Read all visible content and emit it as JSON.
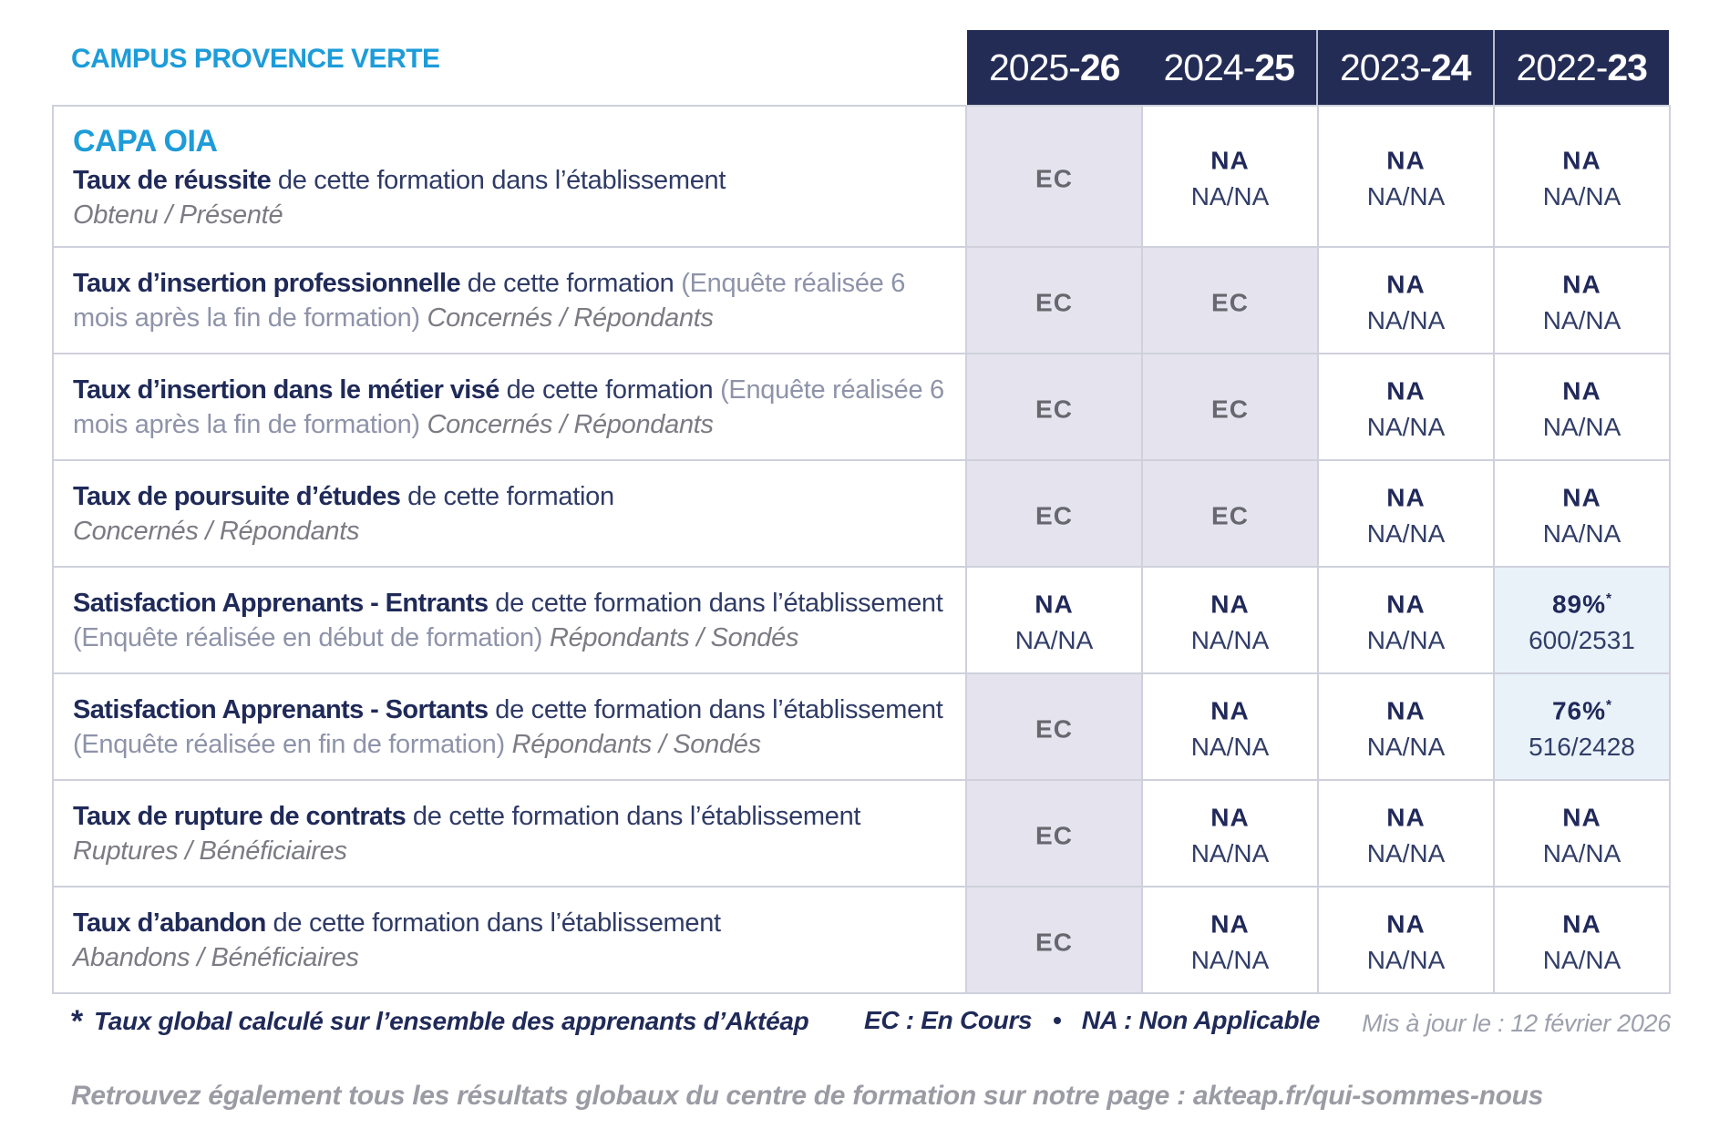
{
  "colors": {
    "accent_blue": "#1d9cd9",
    "header_navy": "#232c55",
    "title_navy": "#1f2a58",
    "body_navy": "#2f3b66",
    "paren_gray": "#8e93a9",
    "label_gray": "#7b7b84",
    "ec_gray": "#67676e",
    "cell_lavender": "#e5e4ee",
    "cell_lightblue": "#e9f2f9",
    "border": "#cfd0dc"
  },
  "campus_title": "CAMPUS PROVENCE VERTE",
  "program_title": "CAPA OIA",
  "year_columns": [
    {
      "prefix": "2025-",
      "suffix": "26"
    },
    {
      "prefix": "2024-",
      "suffix": "25"
    },
    {
      "prefix": "2023-",
      "suffix": "24"
    },
    {
      "prefix": "2022-",
      "suffix": "23"
    }
  ],
  "rows": [
    {
      "title": "Taux de réussite",
      "desc": " de cette formation dans l’établissement",
      "sublabel": "Obtenu / Présenté",
      "cells": [
        {
          "value": "EC"
        },
        {
          "value": "NA",
          "ratio": "NA/NA"
        },
        {
          "value": "NA",
          "ratio": "NA/NA"
        },
        {
          "value": "NA",
          "ratio": "NA/NA"
        }
      ]
    },
    {
      "title": "Taux d’insertion professionnelle",
      "desc": " de cette formation ",
      "paren": "(Enquête réalisée 6 mois après la fin de formation) ",
      "sublabel": "Concernés / Répondants",
      "cells": [
        {
          "value": "EC"
        },
        {
          "value": "EC"
        },
        {
          "value": "NA",
          "ratio": "NA/NA"
        },
        {
          "value": "NA",
          "ratio": "NA/NA"
        }
      ]
    },
    {
      "title": "Taux d’insertion dans le métier visé",
      "desc": " de cette formation ",
      "paren": "(Enquête réalisée 6 mois après la fin de formation) ",
      "sublabel": "Concernés / Répondants",
      "cells": [
        {
          "value": "EC"
        },
        {
          "value": "EC"
        },
        {
          "value": "NA",
          "ratio": "NA/NA"
        },
        {
          "value": "NA",
          "ratio": "NA/NA"
        }
      ]
    },
    {
      "title": "Taux de poursuite d’études",
      "desc": " de cette formation",
      "sublabel": "Concernés / Répondants",
      "cells": [
        {
          "value": "EC"
        },
        {
          "value": "EC"
        },
        {
          "value": "NA",
          "ratio": "NA/NA"
        },
        {
          "value": "NA",
          "ratio": "NA/NA"
        }
      ]
    },
    {
      "title": "Satisfaction Apprenants - Entrants",
      "desc": " de cette formation dans l’établissement ",
      "paren": "(Enquête réalisée en début de formation) ",
      "sublabel": "Répondants / Sondés",
      "cells": [
        {
          "value": "NA",
          "ratio": "NA/NA"
        },
        {
          "value": "NA",
          "ratio": "NA/NA"
        },
        {
          "value": "NA",
          "ratio": "NA/NA"
        },
        {
          "value": "89%",
          "star": "*",
          "ratio": "600/2531"
        }
      ]
    },
    {
      "title": "Satisfaction Apprenants - Sortants",
      "desc": " de cette formation dans l’établissement ",
      "paren": "(Enquête réalisée en fin de formation) ",
      "sublabel": "Répondants / Sondés",
      "cells": [
        {
          "value": "EC"
        },
        {
          "value": "NA",
          "ratio": "NA/NA"
        },
        {
          "value": "NA",
          "ratio": "NA/NA"
        },
        {
          "value": "76%",
          "star": "*",
          "ratio": "516/2428"
        }
      ]
    },
    {
      "title": "Taux de rupture de contrats",
      "desc": " de cette formation dans l’établissement",
      "sublabel": "Ruptures / Bénéficiaires",
      "cells": [
        {
          "value": "EC"
        },
        {
          "value": "NA",
          "ratio": "NA/NA"
        },
        {
          "value": "NA",
          "ratio": "NA/NA"
        },
        {
          "value": "NA",
          "ratio": "NA/NA"
        }
      ]
    },
    {
      "title": "Taux d’abandon",
      "desc": " de cette formation dans l’établissement",
      "sublabel": "Abandons / Bénéficiaires",
      "cells": [
        {
          "value": "EC"
        },
        {
          "value": "NA",
          "ratio": "NA/NA"
        },
        {
          "value": "NA",
          "ratio": "NA/NA"
        },
        {
          "value": "NA",
          "ratio": "NA/NA"
        }
      ]
    }
  ],
  "footnote": {
    "star": "*",
    "text": "Taux global calculé sur l’ensemble des apprenants d’Aktéap"
  },
  "legend": "EC : En Cours   •   NA : Non Applicable",
  "updated": "Mis à jour le : 12 février 2026",
  "footer_note": "Retrouvez également tous les résultats globaux du centre de formation sur notre page : akteap.fr/qui-sommes-nous"
}
